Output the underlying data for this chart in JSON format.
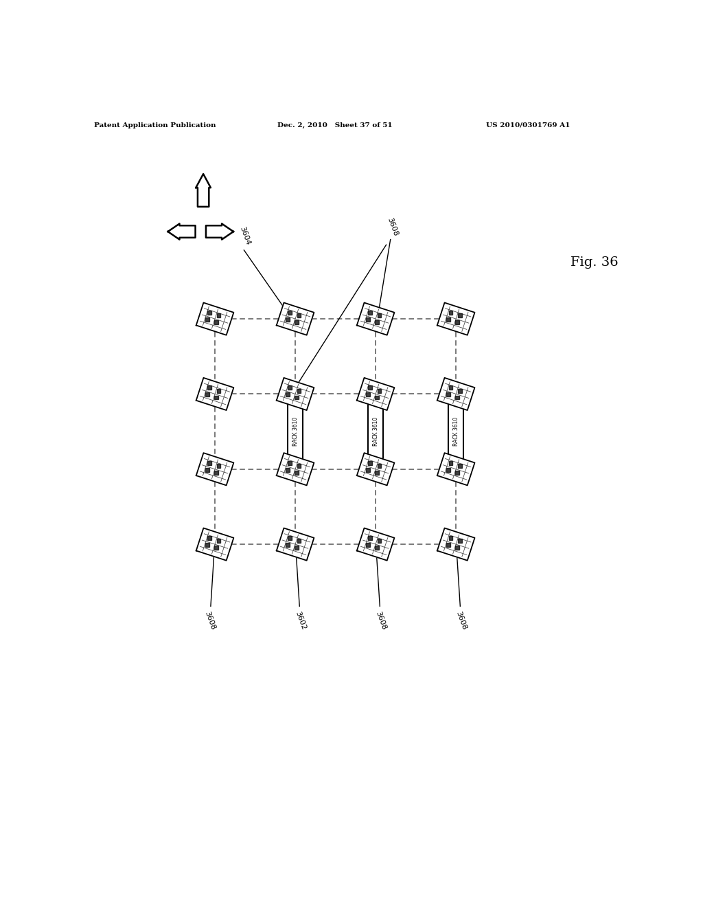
{
  "bg_color": "#ffffff",
  "text_color": "#000000",
  "header_left": "Patent Application Publication",
  "header_mid": "Dec. 2, 2010   Sheet 37 of 51",
  "header_right": "US 2010/0301769 A1",
  "fig_label": "Fig. 36",
  "label_3604": "3604",
  "label_3608": "3608",
  "label_3602": "3602",
  "label_3610": "RACK 3610",
  "dashed_line_color": "#555555",
  "solid_line_color": "#000000"
}
